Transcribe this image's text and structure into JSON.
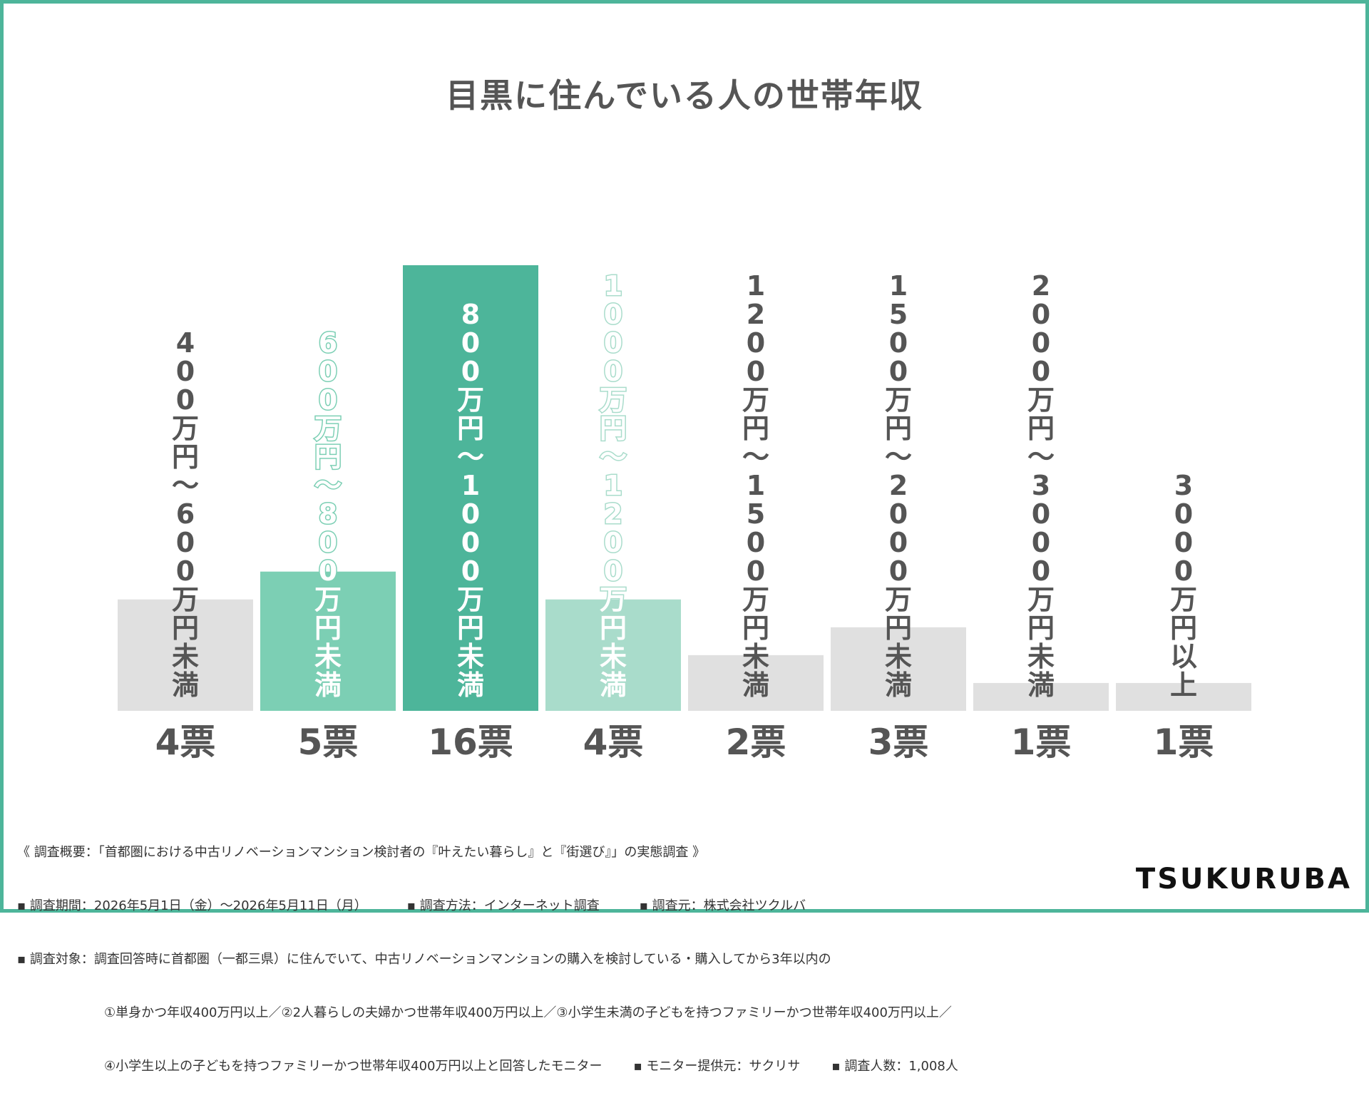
{
  "title": "目黒に住んでいる人の世帯年収",
  "chart_data": {
    "type": "bar",
    "title": "目黒に住んでいる人の世帯年収",
    "categories": [
      "400万円~600万円未満",
      "600万円~800万円未満",
      "800万円~1000万円未満",
      "1000万円~1200万円未満",
      "1200万円~1500万円未満",
      "1500万円~2000万円未満",
      "2000万円~3000万円未満",
      "3000万円以上"
    ],
    "values": [
      4,
      5,
      16,
      4,
      2,
      3,
      1,
      1
    ],
    "value_labels": [
      "4票",
      "5票",
      "16票",
      "4票",
      "2票",
      "3票",
      "1票",
      "1票"
    ],
    "bar_colors": [
      "#e0e0e0",
      "#7ccfb4",
      "#4db59a",
      "#a9dccb",
      "#e0e0e0",
      "#e0e0e0",
      "#e0e0e0",
      "#e0e0e0"
    ],
    "category_label_colors": [
      "#555555",
      "#ffffff",
      "#ffffff",
      "#ffffff",
      "#555555",
      "#555555",
      "#555555",
      "#555555"
    ],
    "label_outline_colors": [
      "none",
      "#7ccfb4",
      "none",
      "#a9dccb",
      "none",
      "none",
      "none",
      "none"
    ],
    "ylim": [
      0,
      16
    ],
    "grid": false,
    "legend": "none"
  },
  "notes": {
    "line1": "《 調査概要：「首都圏における中古リノベーションマンション検討者の『叶えたい暮らし』と『街選び』」の実態調査 》",
    "period": "▪ 調査期間：2026年5月1日（金）〜2026年5月11日（月）",
    "method": "▪ 調査方法：インターネット調査",
    "source": "▪ 調査元：株式会社ツクルバ",
    "target": "▪ 調査対象：調査回答時に首都圏（一都三県）に住んでいて、中古リノベーションマンションの購入を検討している・購入してから3年以内の",
    "target2": "①単身かつ年収400万円以上／②2人暮らしの夫婦かつ世帯年収400万円以上／③小学生未満の子どもを持つファミリーかつ世帯年収400万円以上／",
    "target3": "④小学生以上の子どもを持つファミリーかつ世帯年収400万円以上と回答したモニター",
    "provider": "▪ モニター提供元：サクリサ",
    "count": "▪ 調査人数：1,008人"
  },
  "brand": {
    "logo": "TSUKURUBA",
    "accent": "#4db59a"
  }
}
